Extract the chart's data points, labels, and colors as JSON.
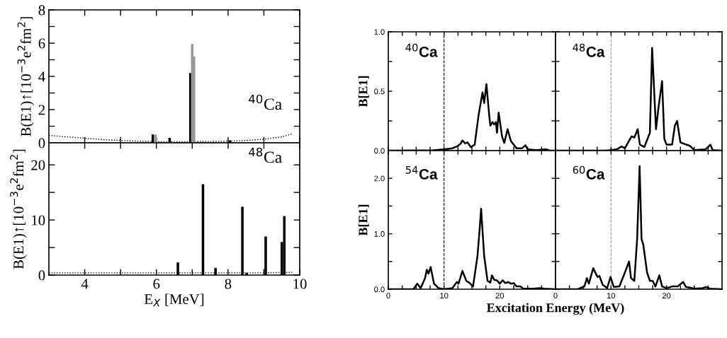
{
  "chart_data": [
    {
      "type": "bar",
      "xlim": [
        3,
        10
      ],
      "ylim": [
        0,
        8
      ],
      "xticks": [
        4,
        6,
        8,
        10,
        {
          "value": 5,
          "label": null
        },
        {
          "value": 7,
          "label": null
        },
        {
          "value": 9,
          "label": null
        }
      ],
      "yticks": [
        0,
        2,
        4,
        6,
        8,
        {
          "value": 1,
          "label": null
        },
        {
          "value": 3,
          "label": null
        },
        {
          "value": 5,
          "label": null
        },
        {
          "value": 7,
          "label": null
        }
      ],
      "tick_labels": "y",
      "ylabel": "B(E1)↑[10$^{−3}$e$^{2}$fm$^{2}$]",
      "annotations": [
        "$^{40}$Ca"
      ],
      "series": [
        {
          "type": "line",
          "line_style": "dotted",
          "color": "#000000",
          "x": [
            3,
            3.5,
            4,
            4.5,
            5,
            5.5,
            6,
            6.5,
            7,
            7.5,
            8,
            8.5,
            9,
            9.5,
            9.8
          ],
          "values": [
            0.45,
            0.36,
            0.28,
            0.2,
            0.14,
            0.1,
            0.07,
            0.06,
            0.07,
            0.08,
            0.1,
            0.14,
            0.22,
            0.36,
            0.55
          ]
        },
        {
          "type": "bar",
          "color": "#000000",
          "x": [
            5.9,
            6.37,
            6.95,
            8.05
          ],
          "values": [
            0.5,
            0.3,
            4.2,
            0.15
          ]
        },
        {
          "type": "bar",
          "color": "#999999",
          "x": [
            5.97,
            7.0,
            7.05
          ],
          "values": [
            0.5,
            5.95,
            5.2
          ]
        }
      ]
    },
    {
      "type": "bar",
      "xlim": [
        3,
        10
      ],
      "ylim": [
        0,
        24
      ],
      "xticks": [
        4,
        6,
        8,
        10,
        {
          "value": 5,
          "label": null
        },
        {
          "value": 7,
          "label": null
        },
        {
          "value": 9,
          "label": null
        }
      ],
      "yticks": [
        0,
        10,
        20,
        {
          "value": 5,
          "label": null
        },
        {
          "value": 15,
          "label": null
        }
      ],
      "xlabel": "E$_{X}$ [MeV]",
      "ylabel": "B(E1)↑[10$^{−3}$e$^{2}$fm$^{2}$]",
      "annotations": [
        "$^{48}$Ca"
      ],
      "series": [
        {
          "type": "line",
          "line_style": "dotted",
          "color": "#000000",
          "x": [
            3,
            4,
            5,
            6,
            7,
            8,
            9,
            9.8
          ],
          "values": [
            0.4,
            0.4,
            0.4,
            0.4,
            0.4,
            0.4,
            0.4,
            0.5
          ]
        },
        {
          "type": "bar",
          "color": "#000000",
          "x": [
            6.6,
            7.3,
            7.65,
            8.4,
            8.52,
            9.05,
            9.5,
            9.57
          ],
          "values": [
            2.3,
            16.5,
            1.3,
            12.4,
            0.4,
            7.0,
            6.0,
            10.7
          ]
        }
      ]
    },
    {
      "type": "line",
      "xlim": [
        0,
        30
      ],
      "ylim": [
        0,
        1.0
      ],
      "xticks": [
        0,
        10,
        20,
        {
          "value": 2.5,
          "label": null
        },
        {
          "value": 5,
          "label": null
        },
        {
          "value": 7.5,
          "label": null
        },
        {
          "value": 12.5,
          "label": null
        },
        {
          "value": 15,
          "label": null
        },
        {
          "value": 17.5,
          "label": null
        },
        {
          "value": 22.5,
          "label": null
        },
        {
          "value": 25,
          "label": null
        },
        {
          "value": 27.5,
          "label": null
        }
      ],
      "yticks": [
        {
          "value": 0,
          "label": "0.0"
        },
        {
          "value": 0.5,
          "label": "0.5"
        },
        {
          "value": 1.0,
          "label": "1.0"
        },
        {
          "value": 0.25,
          "label": null
        },
        {
          "value": 0.75,
          "label": null
        }
      ],
      "tick_labels": "y",
      "ylabel": "B[E1]",
      "annotations": [
        "$^{40}$Ca"
      ],
      "ref_lines": [
        {
          "axis": "x",
          "value": 10,
          "line_style": "dashed"
        }
      ],
      "series": [
        {
          "color": "#000000",
          "x": [
            0,
            8,
            10,
            11.5,
            12.5,
            13.0,
            13.3,
            13.8,
            14.2,
            14.8,
            15.5,
            16.2,
            16.9,
            17.2,
            17.6,
            18.1,
            18.3,
            18.7,
            19.0,
            19.3,
            19.5,
            19.8,
            20.4,
            20.8,
            21.4,
            22.0,
            23.0,
            24.0,
            24.6,
            25.0,
            26.5,
            28.3,
            29,
            30
          ],
          "values": [
            0,
            0.003,
            0.01,
            0.02,
            0.04,
            0.06,
            0.085,
            0.06,
            0.07,
            0.03,
            0.05,
            0.3,
            0.49,
            0.4,
            0.56,
            0.3,
            0.21,
            0.24,
            0.22,
            0.24,
            0.15,
            0.32,
            0.12,
            0.065,
            0.18,
            0.08,
            0.02,
            0.02,
            0.045,
            0.01,
            0.005,
            0.01,
            0.0,
            0
          ]
        }
      ]
    },
    {
      "type": "line",
      "xlim": [
        0,
        30
      ],
      "ylim": [
        0,
        1.0
      ],
      "xticks": [
        0,
        10,
        20,
        {
          "value": 2.5,
          "label": null
        },
        {
          "value": 5,
          "label": null
        },
        {
          "value": 7.5,
          "label": null
        },
        {
          "value": 12.5,
          "label": null
        },
        {
          "value": 15,
          "label": null
        },
        {
          "value": 17.5,
          "label": null
        },
        {
          "value": 22.5,
          "label": null
        },
        {
          "value": 25,
          "label": null
        },
        {
          "value": 27.5,
          "label": null
        }
      ],
      "yticks": [
        0,
        0.5,
        1.0,
        0.25,
        0.75
      ],
      "tick_labels": false,
      "annotations": [
        "$^{48}$Ca"
      ],
      "ref_lines": [
        {
          "axis": "x",
          "value": 10,
          "line_style": "dashed",
          "color": "#999999"
        }
      ],
      "series": [
        {
          "color": "#000000",
          "x": [
            0,
            9,
            10,
            11,
            11.9,
            12.5,
            13.7,
            14.2,
            14.8,
            15.2,
            16.0,
            17.0,
            17.2,
            17.4,
            18.1,
            18.6,
            19.2,
            19.6,
            20.0,
            21.0,
            21.5,
            21.9,
            22.5,
            23.0,
            24.2,
            25,
            27,
            27.9,
            28.3,
            30
          ],
          "values": [
            0,
            0,
            0.005,
            0.01,
            0.035,
            0.02,
            0.12,
            0.11,
            0.18,
            0.05,
            0.03,
            0.15,
            0.5,
            0.865,
            0.18,
            0.38,
            0.585,
            0.1,
            0.05,
            0.05,
            0.21,
            0.25,
            0.07,
            0.06,
            0.04,
            0.005,
            0.01,
            0.05,
            0.005,
            0
          ]
        }
      ]
    },
    {
      "type": "line",
      "xlim": [
        0,
        30
      ],
      "ylim": [
        0,
        2.5
      ],
      "xticks": [
        0,
        10,
        20,
        {
          "value": 2.5,
          "label": null
        },
        {
          "value": 5,
          "label": null
        },
        {
          "value": 7.5,
          "label": null
        },
        {
          "value": 12.5,
          "label": null
        },
        {
          "value": 15,
          "label": null
        },
        {
          "value": 17.5,
          "label": null
        },
        {
          "value": 22.5,
          "label": null
        },
        {
          "value": 25,
          "label": null
        },
        {
          "value": 27.5,
          "label": null
        }
      ],
      "yticks": [
        {
          "value": 0,
          "label": "0.0"
        },
        {
          "value": 1.0,
          "label": "1.0"
        },
        {
          "value": 2.0,
          "label": "2.0"
        },
        {
          "value": 0.5,
          "label": null
        },
        {
          "value": 1.5,
          "label": null
        }
      ],
      "xlabel": "Excitation Energy (MeV)",
      "ylabel": "B[E1]",
      "annotations": [
        "$^{54}$Ca"
      ],
      "ref_lines": [
        {
          "axis": "x",
          "value": 10,
          "line_style": "dashed"
        }
      ],
      "series": [
        {
          "color": "#000000",
          "x": [
            0,
            4.5,
            5.2,
            5.8,
            6.6,
            6.9,
            7.2,
            7.6,
            8.2,
            9,
            10,
            11.5,
            12.3,
            12.6,
            13.3,
            14.0,
            14.5,
            15.2,
            16.0,
            16.4,
            16.65,
            17.2,
            17.8,
            18.3,
            18.6,
            19.0,
            19.5,
            20.0,
            20.5,
            21,
            21.5,
            22,
            22.5,
            23,
            23.7,
            24.2,
            26,
            27.2,
            28,
            30
          ],
          "values": [
            0,
            0,
            0.1,
            0.02,
            0.2,
            0.35,
            0.28,
            0.4,
            0.1,
            0.02,
            0,
            0.02,
            0.13,
            0.1,
            0.33,
            0.15,
            0.12,
            0.05,
            0.6,
            1.1,
            1.45,
            0.6,
            0.15,
            0.12,
            0.25,
            0.17,
            0.16,
            0.1,
            0.16,
            0.11,
            0.13,
            0.1,
            0.11,
            0.05,
            0.05,
            0.01,
            0.01,
            0.02,
            0.01,
            0
          ]
        }
      ]
    },
    {
      "type": "line",
      "xlim": [
        0,
        30
      ],
      "ylim": [
        0,
        2.5
      ],
      "xticks": [
        0,
        10,
        20,
        {
          "value": 2.5,
          "label": null
        },
        {
          "value": 5,
          "label": null
        },
        {
          "value": 7.5,
          "label": null
        },
        {
          "value": 12.5,
          "label": null
        },
        {
          "value": 15,
          "label": null
        },
        {
          "value": 17.5,
          "label": null
        },
        {
          "value": 22.5,
          "label": null
        },
        {
          "value": 25,
          "label": null
        },
        {
          "value": 27.5,
          "label": null
        }
      ],
      "yticks": [
        0,
        1.0,
        2.0,
        0.5,
        1.5
      ],
      "tick_labels": "x",
      "annotations": [
        "$^{60}$Ca"
      ],
      "ref_lines": [
        {
          "axis": "x",
          "value": 10,
          "line_style": "dashed",
          "color": "#999999"
        }
      ],
      "series": [
        {
          "color": "#000000",
          "x": [
            0,
            4,
            5.2,
            5.65,
            6.0,
            6.8,
            7.3,
            7.6,
            7.9,
            8.5,
            9.3,
            9.9,
            10.5,
            11.5,
            12.3,
            13.25,
            13.6,
            14.2,
            14.7,
            15.15,
            15.5,
            15.8,
            16.5,
            17.0,
            17.5,
            18.0,
            18.7,
            19.2,
            20,
            21,
            22,
            23.0,
            23.5,
            24.2,
            25,
            26.5,
            27.1,
            27.8,
            30
          ],
          "values": [
            0,
            0,
            0.05,
            0.2,
            0.1,
            0.38,
            0.27,
            0.22,
            0.24,
            0.08,
            0.02,
            0.22,
            0.04,
            0.05,
            0.25,
            0.5,
            0.2,
            0.15,
            0.9,
            2.22,
            0.9,
            0.81,
            0.3,
            0.15,
            0.15,
            0.05,
            0.25,
            0.05,
            0.02,
            0.05,
            0.05,
            0.13,
            0.04,
            0.03,
            0.01,
            0.02,
            0.04,
            0.01,
            0
          ]
        }
      ]
    }
  ]
}
